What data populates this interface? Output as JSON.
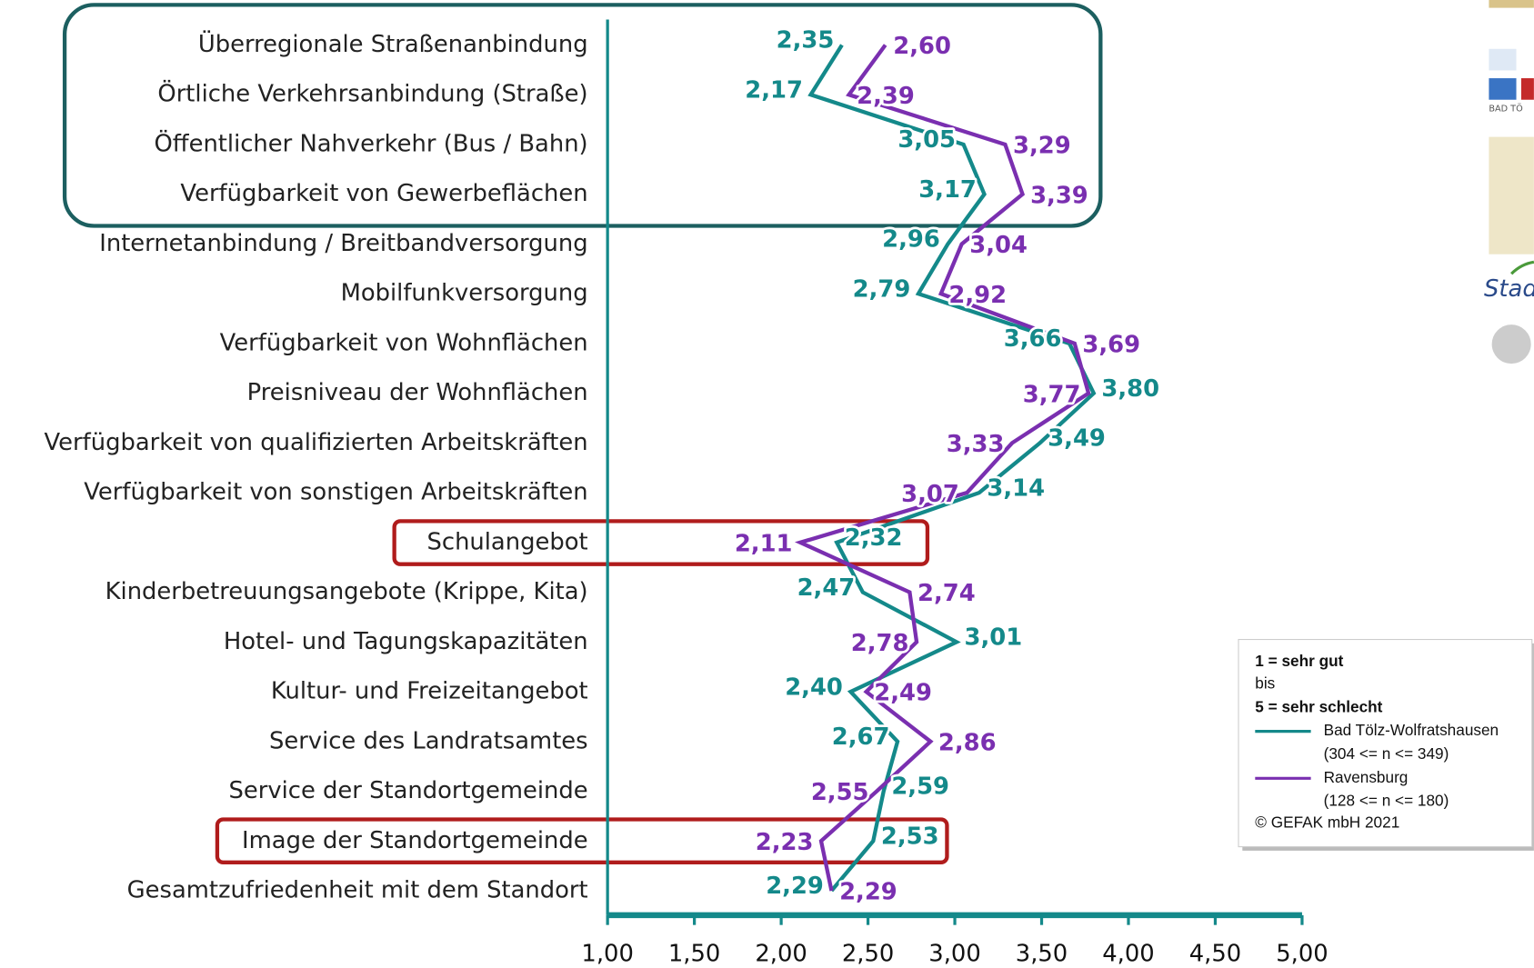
{
  "chart_data": {
    "type": "line",
    "orientation": "horizontal",
    "categories": [
      "Überregionale Straßenanbindung",
      "Örtliche Verkehrsanbindung (Straße)",
      "Öffentlicher Nahverkehr (Bus / Bahn)",
      "Verfügbarkeit von Gewerbeflächen",
      "Internetanbindung / Breitbandversorgung",
      "Mobilfunkversorgung",
      "Verfügbarkeit von Wohnflächen",
      "Preisniveau der Wohnflächen",
      "Verfügbarkeit von qualifizierten Arbeitskräften",
      "Verfügbarkeit von sonstigen Arbeitskräften",
      "Schulangebot",
      "Kinderbetreuungsangebote (Krippe, Kita)",
      "Hotel- und Tagungskapazitäten",
      "Kultur- und Freizeitangebot",
      "Service des Landratsamtes",
      "Service der Standortgemeinde",
      "Image der Standortgemeinde",
      "Gesamtzufriedenheit mit dem Standort"
    ],
    "series": [
      {
        "name": "Bad Tölz-Wolfratshausen",
        "sample_size": "(304 <= n <= 349)",
        "color": "#14898a",
        "values": [
          2.35,
          2.17,
          3.05,
          3.17,
          2.96,
          2.79,
          3.66,
          3.8,
          3.49,
          3.14,
          2.32,
          2.47,
          3.01,
          2.4,
          2.67,
          2.59,
          2.53,
          2.29
        ],
        "value_labels": [
          "2,35",
          "2,17",
          "3,05",
          "3,17",
          "2,96",
          "2,79",
          "3,66",
          "3,80",
          "3,49",
          "3,14",
          "2,32",
          "2,47",
          "3,01",
          "2,40",
          "2,67",
          "2,59",
          "2,53",
          "2,29"
        ]
      },
      {
        "name": "Ravensburg",
        "sample_size": "(128 <= n <= 180)",
        "color": "#7a2fb0",
        "values": [
          2.6,
          2.39,
          3.29,
          3.39,
          3.04,
          2.92,
          3.69,
          3.77,
          3.33,
          3.07,
          2.11,
          2.74,
          2.78,
          2.49,
          2.86,
          2.55,
          2.23,
          2.29
        ],
        "value_labels": [
          "2,60",
          "2,39",
          "3,29",
          "3,39",
          "3,04",
          "2,92",
          "3,69",
          "3,77",
          "3,33",
          "3,07",
          "2,11",
          "2,74",
          "2,78",
          "2,49",
          "2,86",
          "2,55",
          "2,23",
          "2,29"
        ]
      }
    ],
    "xlim": [
      1,
      5
    ],
    "xticks": [
      {
        "value": 1,
        "label": "1,00"
      },
      {
        "value": 1.5,
        "label": "1,50"
      },
      {
        "value": 2,
        "label": "2,00"
      },
      {
        "value": 2.5,
        "label": "2,50"
      },
      {
        "value": 3,
        "label": "3,00"
      },
      {
        "value": 3.5,
        "label": "3,50"
      },
      {
        "value": 4,
        "label": "4,00"
      },
      {
        "value": 4.5,
        "label": "4,50"
      },
      {
        "value": 5,
        "label": "5,00"
      }
    ],
    "legend": {
      "scale_top": "1 = sehr gut",
      "scale_mid": "bis",
      "scale_bottom": "5 = sehr schlecht",
      "copyright": "© GEFAK mbH 2021"
    },
    "logo_texts": [
      "BAD TÖ",
      "Stad"
    ]
  }
}
